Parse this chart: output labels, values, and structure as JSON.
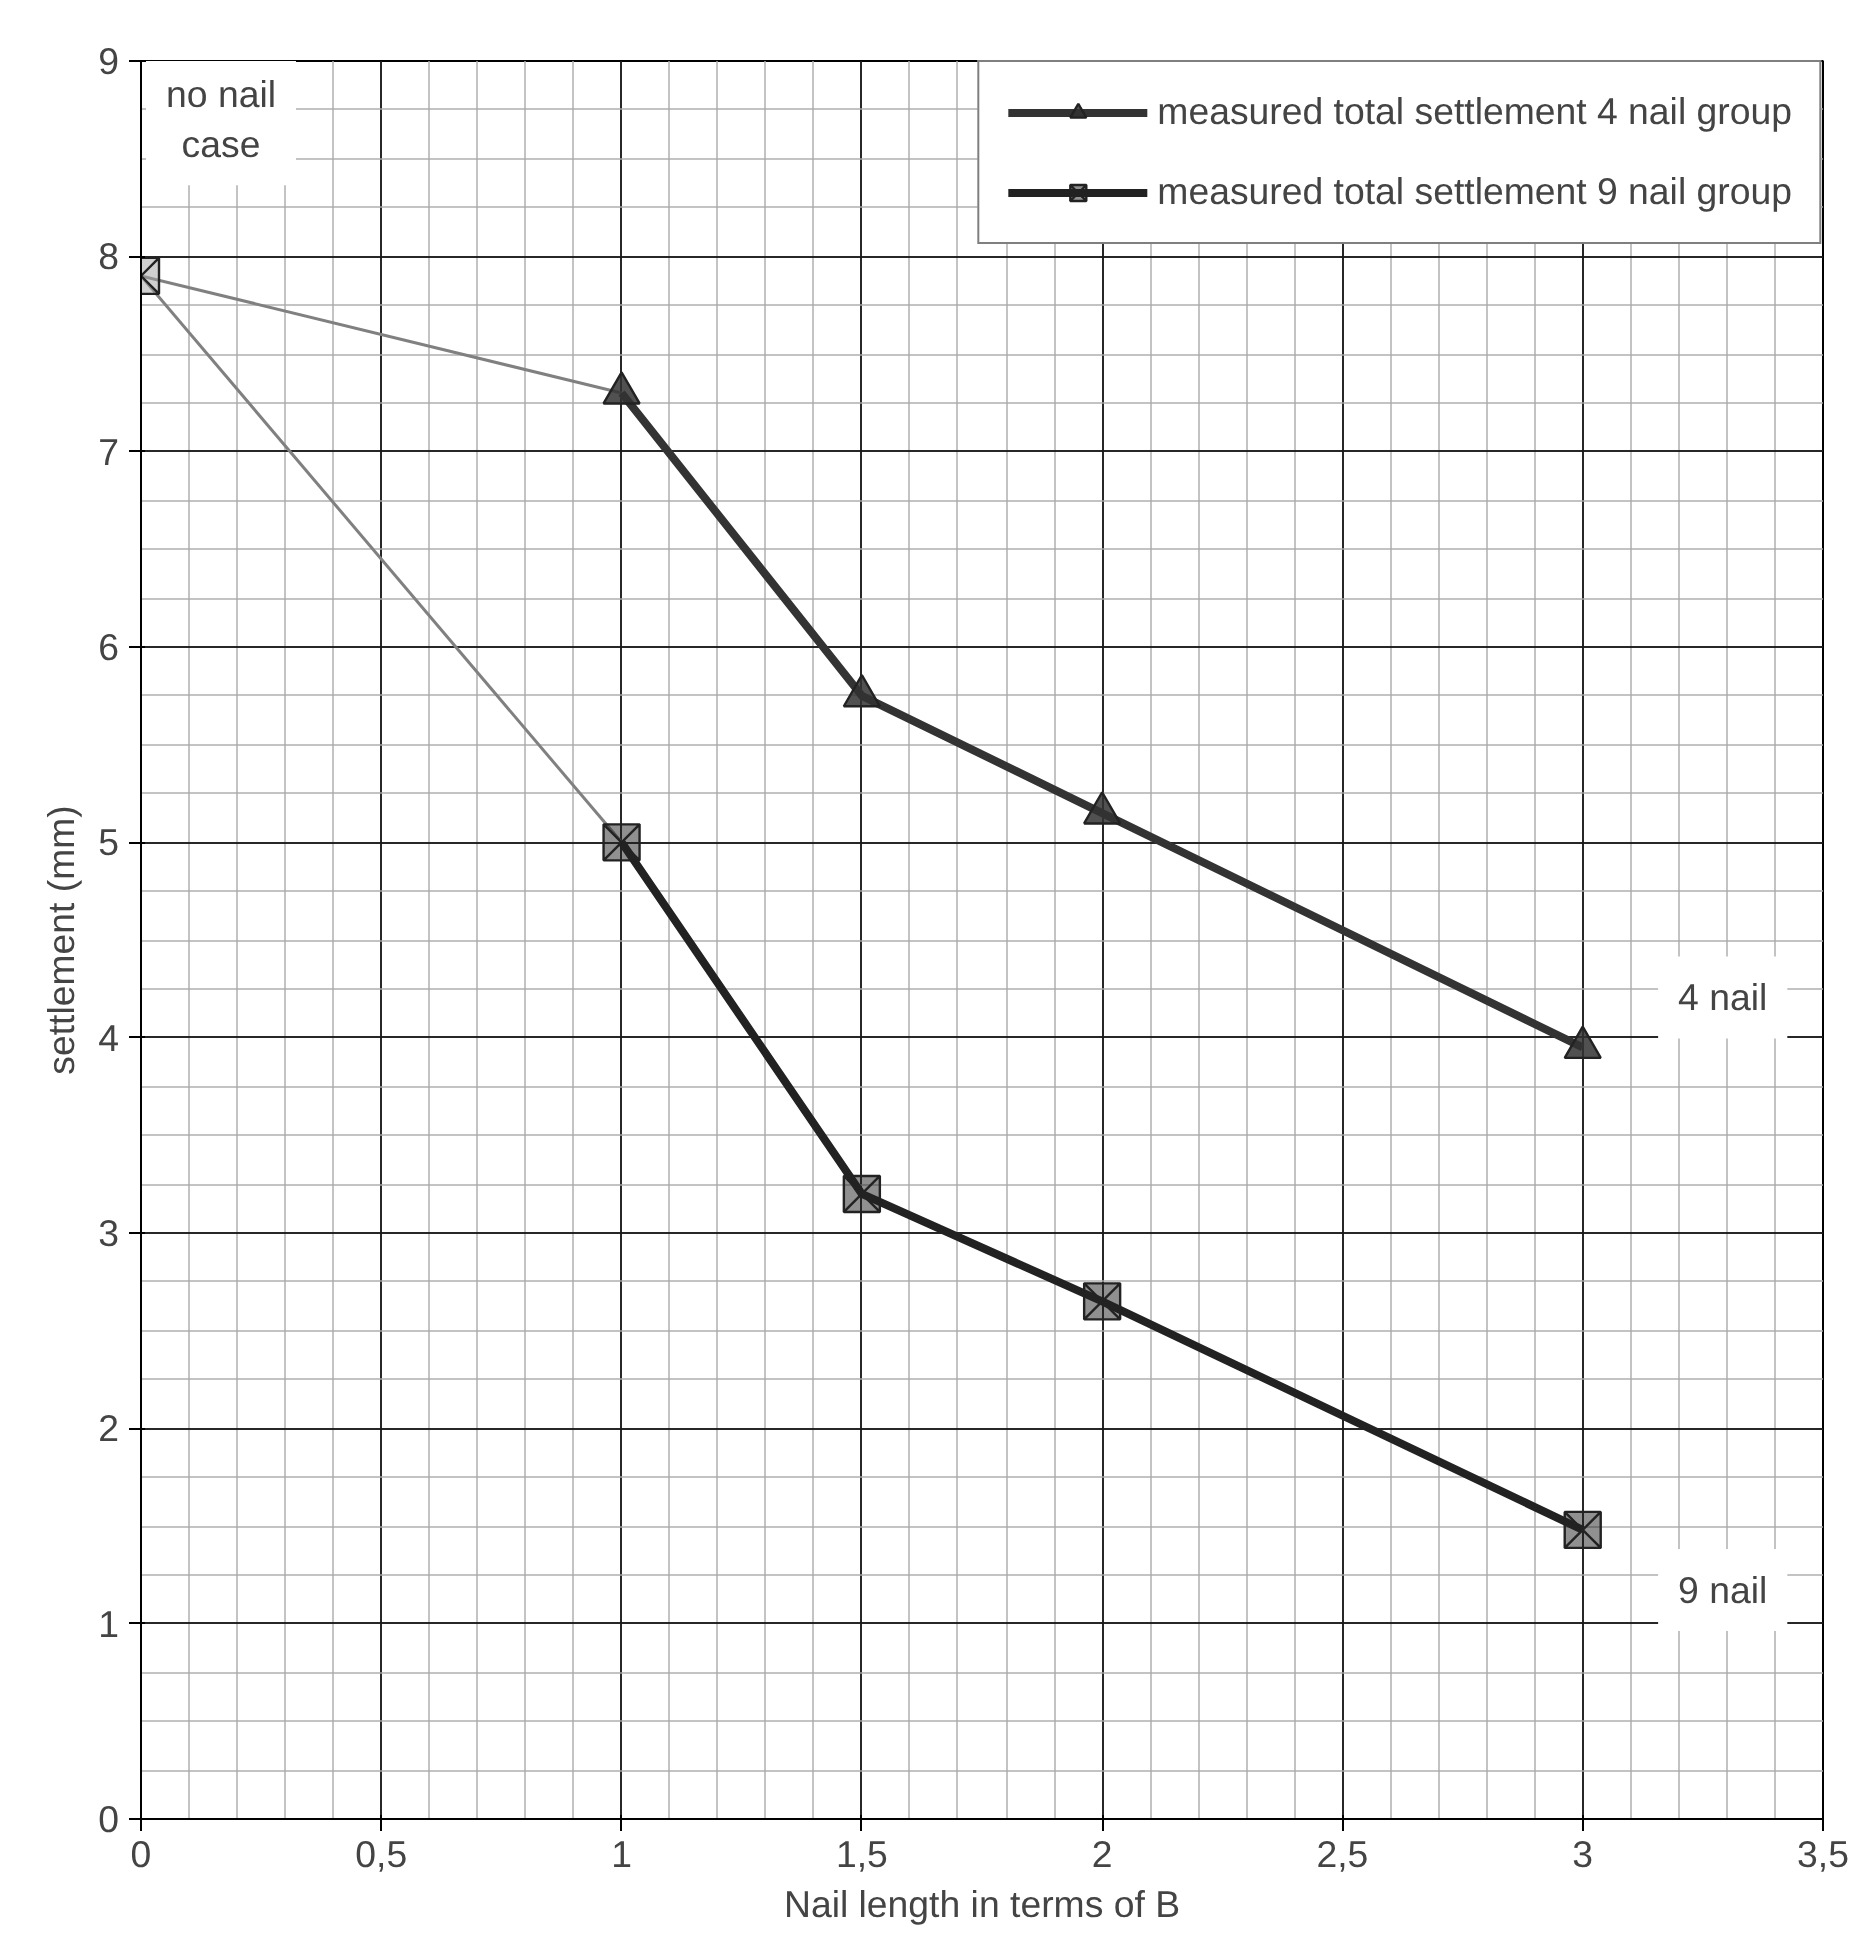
{
  "chart_data": {
    "type": "line",
    "xlabel": "Nail length in terms of B",
    "ylabel": "settlement (mm)",
    "xlim": [
      0,
      3.5
    ],
    "ylim": [
      0,
      9
    ],
    "xticks": [
      0,
      {
        "value": 0.5,
        "label": "0,5"
      },
      1,
      {
        "value": 1.5,
        "label": "1,5"
      },
      2,
      {
        "value": 2.5,
        "label": "2,5"
      },
      3,
      {
        "value": 3.5,
        "label": "3,5"
      }
    ],
    "yticks": [
      0,
      1,
      2,
      3,
      4,
      5,
      6,
      7,
      8,
      9
    ],
    "grid": true,
    "legend": "top right",
    "series": [
      {
        "x": [
          0,
          1
        ],
        "values": [
          7.9,
          7.3
        ],
        "color": "#808080",
        "marker": "none"
      },
      {
        "x": [
          0,
          1
        ],
        "values": [
          7.9,
          5.0
        ],
        "color": "#808080",
        "marker": "none"
      },
      {
        "x": [
          0
        ],
        "values": [
          7.9
        ],
        "color": "#a0a0a0",
        "type": "scatter",
        "marker": "cross"
      },
      {
        "name": "measured total settlement 4 nail group",
        "x": [
          1,
          1.5,
          2,
          3
        ],
        "values": [
          7.3,
          5.75,
          5.15,
          3.95
        ],
        "color": "#333333",
        "marker": "triangle"
      },
      {
        "name": "measured total settlement 9 nail group",
        "x": [
          1,
          1.5,
          2,
          3
        ],
        "values": [
          5.0,
          3.2,
          2.65,
          1.48
        ],
        "color": "#222222",
        "marker": "cross"
      }
    ],
    "annotations": [
      "no nail\ncase",
      {
        "text": "4 nail",
        "x": 3,
        "y": 3.95
      },
      {
        "text": "9 nail",
        "x": 3,
        "y": 1.48
      }
    ]
  }
}
